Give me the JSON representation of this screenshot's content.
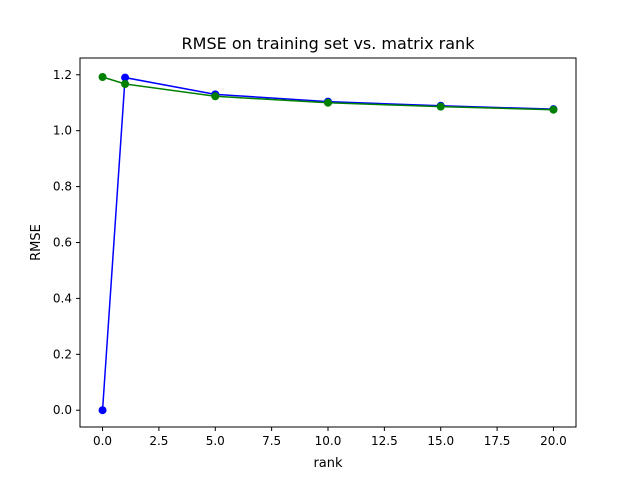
{
  "chart_data": {
    "type": "line",
    "title": "RMSE on training set vs. matrix rank",
    "xlabel": "rank",
    "ylabel": "RMSE",
    "xlim": [
      -1.0,
      21.0
    ],
    "ylim": [
      -0.06,
      1.26
    ],
    "xticks": [
      0.0,
      2.5,
      5.0,
      7.5,
      10.0,
      12.5,
      15.0,
      17.5,
      20.0
    ],
    "xtick_labels": [
      "0.0",
      "2.5",
      "5.0",
      "7.5",
      "10.0",
      "12.5",
      "15.0",
      "17.5",
      "20.0"
    ],
    "yticks": [
      0.0,
      0.2,
      0.4,
      0.6,
      0.8,
      1.0,
      1.2
    ],
    "ytick_labels": [
      "0.0",
      "0.2",
      "0.4",
      "0.6",
      "0.8",
      "1.0",
      "1.2"
    ],
    "grid": false,
    "series": [
      {
        "color": "#0000ff",
        "marker": "circle",
        "x": [
          0,
          1,
          5,
          10,
          15,
          20
        ],
        "y": [
          0.0,
          1.19,
          1.13,
          1.104,
          1.089,
          1.077
        ]
      },
      {
        "color": "#008000",
        "marker": "circle",
        "x": [
          0,
          1,
          5,
          10,
          15,
          20
        ],
        "y": [
          1.192,
          1.167,
          1.123,
          1.1,
          1.086,
          1.075
        ]
      }
    ]
  }
}
